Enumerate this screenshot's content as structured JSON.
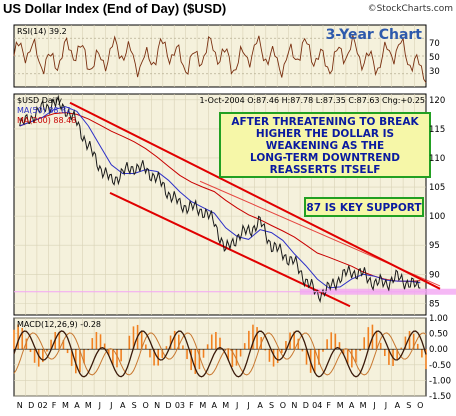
{
  "title": "US Dollar Index (End of Day) ($USD)",
  "credit": "©StockCharts.com",
  "subtitle": "3-Year Chart",
  "colors": {
    "panel_bg": "#f5f1dc",
    "price_line": "#1a1a1a",
    "ma50": "#2d30c8",
    "ma200": "#c80000",
    "trend": "#e00000",
    "support": "#f3a6f3",
    "note_bg": "#f6f7a8",
    "note_border": "#22a022",
    "macd_hist": "#f08020",
    "rsi_line": "#7a3010"
  },
  "rsi_panel": {
    "label": "RSI(14) 39.2",
    "ticks": [
      "70",
      "50",
      "30"
    ]
  },
  "price_panel": {
    "label": "$USD Daily",
    "ma50_label": "MA(50) 88.82",
    "ma200_label": "MA(200) 88.48",
    "quote": "1-Oct-2004 O:87.46 H:87.78 L:87.35 C:87.63 Chg:+0.25",
    "y_ticks": [
      "120",
      "115",
      "110",
      "105",
      "100",
      "95",
      "90",
      "85"
    ],
    "annotation_lines": [
      "AFTER THREATENING TO BREAK",
      "HIGHER THE DOLLAR IS",
      "WEAKENING AS THE",
      "LONG-TERM DOWNTREND",
      "REASSERTS ITSELF"
    ],
    "support_note": "87 IS KEY SUPPORT"
  },
  "macd_panel": {
    "label": "MACD(12,26,9) -0.28",
    "ticks": [
      "1.00",
      "0.50",
      "0.00",
      "-0.50",
      "-1.00",
      "-1.50"
    ]
  },
  "x_ticks": [
    "N",
    "D",
    "02",
    "F",
    "M",
    "A",
    "M",
    "J",
    "J",
    "A",
    "S",
    "O",
    "N",
    "D",
    "03",
    "F",
    "M",
    "A",
    "M",
    "J",
    "J",
    "A",
    "S",
    "O",
    "N",
    "D",
    "04",
    "F",
    "M",
    "A",
    "M",
    "J",
    "J",
    "A",
    "S",
    "O"
  ],
  "chart_data": {
    "type": "line",
    "title": "US Dollar Index (End of Day) ($USD)",
    "x_range": [
      "Nov-2001",
      "Oct-2004"
    ],
    "ylim": [
      83,
      121
    ],
    "price_series": {
      "name": "$USD Daily",
      "x": [
        "Nov-01",
        "Dec-01",
        "Jan-02",
        "Feb-02",
        "Mar-02",
        "Apr-02",
        "May-02",
        "Jun-02",
        "Jul-02",
        "Aug-02",
        "Sep-02",
        "Oct-02",
        "Nov-02",
        "Dec-02",
        "Jan-03",
        "Feb-03",
        "Mar-03",
        "Apr-03",
        "May-03",
        "Jun-03",
        "Jul-03",
        "Aug-03",
        "Sep-03",
        "Oct-03",
        "Nov-03",
        "Dec-03",
        "Jan-04",
        "Feb-04",
        "Mar-04",
        "Apr-04",
        "May-04",
        "Jun-04",
        "Jul-04",
        "Aug-04",
        "Sep-04",
        "Oct-04"
      ],
      "values": [
        115.5,
        117.0,
        118.5,
        119.5,
        118.5,
        116.0,
        112.0,
        108.5,
        106.0,
        107.5,
        108.5,
        108.0,
        106.5,
        104.0,
        102.0,
        101.5,
        101.0,
        99.0,
        94.0,
        96.5,
        97.5,
        99.0,
        95.0,
        93.5,
        92.0,
        89.0,
        86.5,
        87.5,
        89.5,
        90.5,
        90.0,
        88.5,
        88.5,
        89.5,
        88.5,
        87.63
      ]
    },
    "ma50": {
      "name": "MA(50)",
      "last": 88.82
    },
    "ma200": {
      "name": "MA(200)",
      "last": 88.48
    },
    "rsi": {
      "name": "RSI(14)",
      "last": 39.2,
      "levels": [
        70,
        50,
        30
      ]
    },
    "macd": {
      "name": "MACD(12,26,9)",
      "last": -0.28,
      "ylim": [
        -1.5,
        1.0
      ]
    },
    "support_level": 87,
    "ohlc_last": {
      "date": "1-Oct-2004",
      "open": 87.46,
      "high": 87.78,
      "low": 87.35,
      "close": 87.63,
      "change": 0.25
    }
  }
}
